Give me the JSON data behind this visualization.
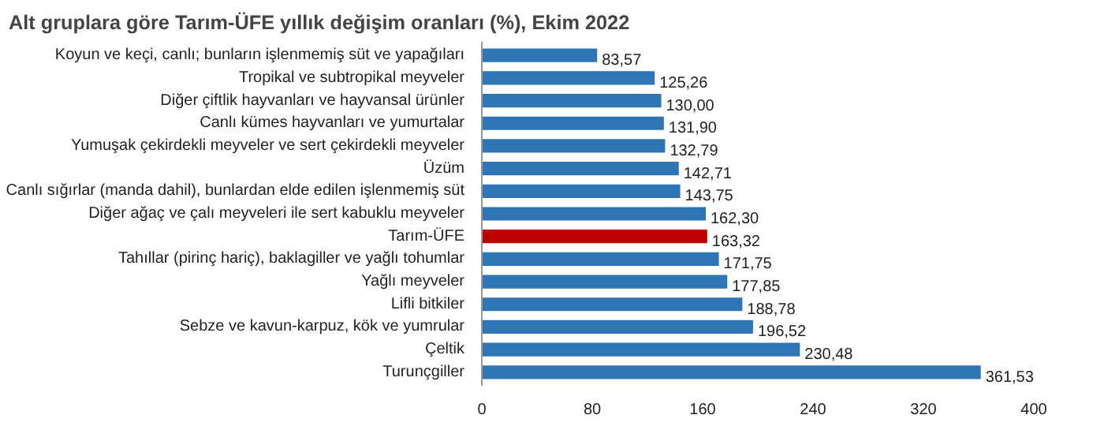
{
  "chart_data": {
    "type": "bar",
    "orientation": "horizontal",
    "title": "Alt gruplara göre Tarım-ÜFE yıllık değişim oranları (%), Ekim 2022",
    "categories": [
      "Koyun ve keçi, canlı; bunların işlenmemiş süt ve yapağıları",
      "Tropikal ve subtropikal meyveler",
      "Diğer çiftlik hayvanları ve hayvansal ürünler",
      "Canlı kümes hayvanları ve yumurtalar",
      "Yumuşak çekirdekli meyveler ve sert çekirdekli meyveler",
      "Üzüm",
      "Canlı sığırlar (manda dahil), bunlardan elde edilen işlenmemiş süt",
      "Diğer ağaç ve çalı meyveleri ile sert kabuklu meyveler",
      "Tarım-ÜFE",
      "Tahıllar (pirinç hariç), baklagiller ve yağlı tohumlar",
      "Yağlı meyveler",
      "Lifli bitkiler",
      "Sebze ve kavun-karpuz, kök ve yumrular",
      "Çeltik",
      "Turunçgiller"
    ],
    "values": [
      83.57,
      125.26,
      130.0,
      131.9,
      132.79,
      142.71,
      143.75,
      162.3,
      163.32,
      171.75,
      177.85,
      188.78,
      196.52,
      230.48,
      361.53
    ],
    "value_labels": [
      "83,57",
      "125,26",
      "130,00",
      "131,90",
      "132,79",
      "142,71",
      "143,75",
      "162,30",
      "163,32",
      "171,75",
      "177,85",
      "188,78",
      "196,52",
      "230,48",
      "361,53"
    ],
    "colors": [
      "#2e75b6",
      "#2e75b6",
      "#2e75b6",
      "#2e75b6",
      "#2e75b6",
      "#2e75b6",
      "#2e75b6",
      "#2e75b6",
      "#c00000",
      "#2e75b6",
      "#2e75b6",
      "#2e75b6",
      "#2e75b6",
      "#2e75b6",
      "#2e75b6"
    ],
    "xlim": [
      0,
      400
    ],
    "xticks": [
      0,
      80,
      160,
      240,
      320,
      400
    ],
    "grid": false
  }
}
